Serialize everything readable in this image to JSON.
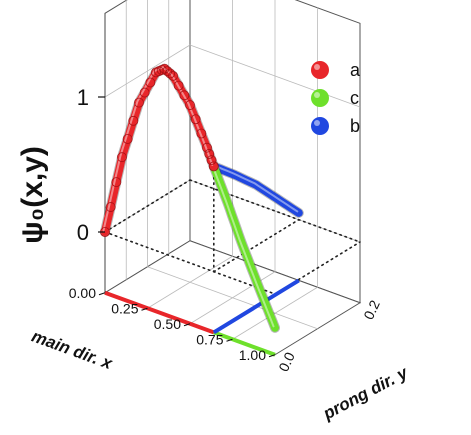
{
  "chart_data": {
    "type": "line",
    "projection": "3d",
    "ylabel": "ψ₀(x,y)",
    "xlabel": "main dir. x",
    "zlabel": "prong dir. y",
    "ylim": [
      -0.4,
      1.4
    ],
    "xlim": [
      0,
      1
    ],
    "zlim": [
      0,
      0.2
    ],
    "yticks": [
      "0",
      "1"
    ],
    "xticks": [
      "0.00",
      "0.25",
      "0.50",
      "0.75",
      "1.00"
    ],
    "zticks": [
      "0.0",
      "0.2"
    ],
    "grid": true,
    "legend_position": "top-right",
    "series": [
      {
        "name": "a",
        "color": "#e8262a",
        "points": [
          {
            "x": 0.0,
            "prong": 0.0,
            "psi": 0.0
          },
          {
            "x": 0.1,
            "prong": 0.0,
            "psi": 0.6
          },
          {
            "x": 0.2,
            "prong": 0.0,
            "psi": 1.05
          },
          {
            "x": 0.3,
            "prong": 0.0,
            "psi": 1.32
          },
          {
            "x": 0.35,
            "prong": 0.0,
            "psi": 1.37
          },
          {
            "x": 0.4,
            "prong": 0.0,
            "psi": 1.34
          },
          {
            "x": 0.5,
            "prong": 0.0,
            "psi": 1.17
          },
          {
            "x": 0.6,
            "prong": 0.0,
            "psi": 0.9
          },
          {
            "x": 0.64,
            "prong": 0.0,
            "psi": 0.78
          }
        ]
      },
      {
        "name": "c",
        "color": "#6ee02b",
        "points": [
          {
            "x": 0.64,
            "prong": 0.0,
            "psi": 0.78
          },
          {
            "x": 0.72,
            "prong": 0.0,
            "psi": 0.55
          },
          {
            "x": 0.8,
            "prong": 0.0,
            "psi": 0.3
          },
          {
            "x": 0.9,
            "prong": 0.0,
            "psi": 0.02
          },
          {
            "x": 1.0,
            "prong": 0.0,
            "psi": -0.25
          }
        ]
      },
      {
        "name": "b",
        "color": "#2047e0",
        "points": [
          {
            "x": 0.64,
            "prong": 0.0,
            "psi": 0.78
          },
          {
            "x": 0.64,
            "prong": 0.05,
            "psi": 0.62
          },
          {
            "x": 0.64,
            "prong": 0.1,
            "psi": 0.45
          },
          {
            "x": 0.64,
            "prong": 0.15,
            "psi": 0.25
          },
          {
            "x": 0.64,
            "prong": 0.2,
            "psi": 0.05
          }
        ]
      }
    ]
  }
}
